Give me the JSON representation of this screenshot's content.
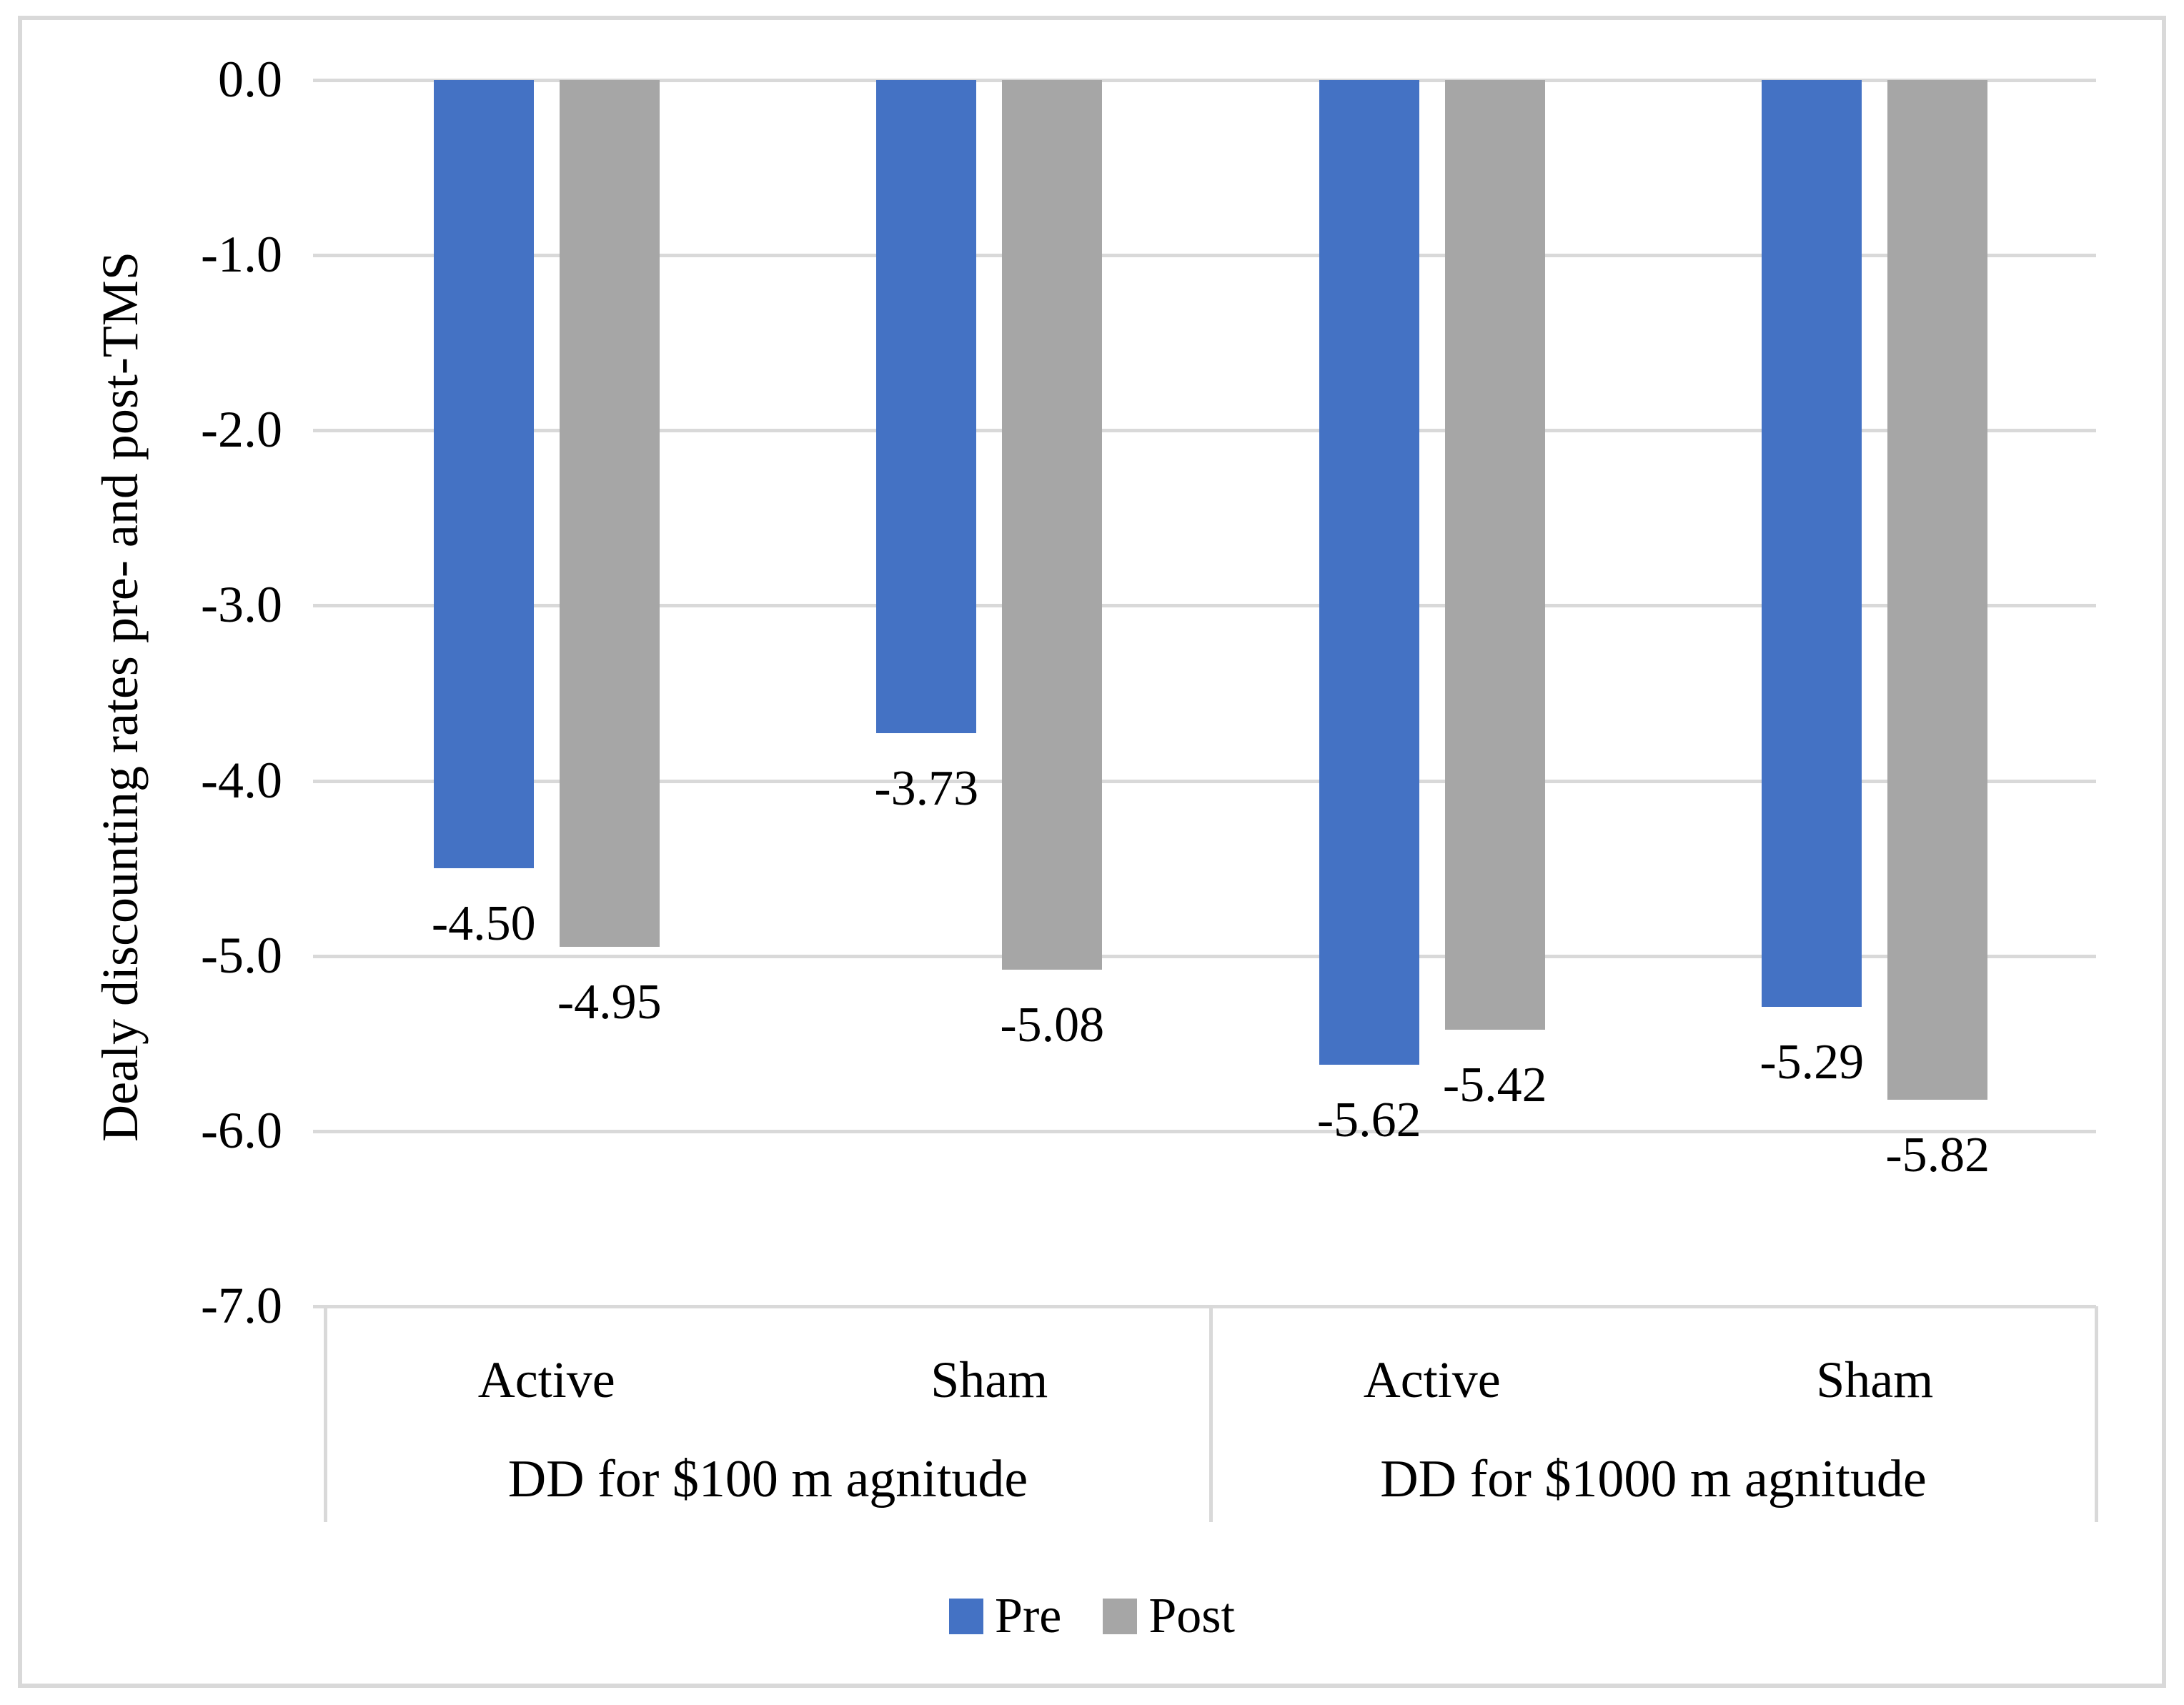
{
  "figure": {
    "background_color": "#ffffff",
    "frame_border_color": "#d9d9d9",
    "gridline_color": "#d9d9d9",
    "axis_line_color": "#d9d9d9",
    "text_color": "#000000"
  },
  "chart_data": {
    "type": "bar",
    "orientation": "vertical",
    "direction": "bars-extend-downward-from-zero",
    "title": "",
    "xlabel": "",
    "ylabel": "Dealy discounting rates pre- and post-TMS",
    "ylim": [
      -7.0,
      0.0
    ],
    "ytick_step": 1.0,
    "ytick_labels": [
      "0.0",
      "-1.0",
      "-2.0",
      "-3.0",
      "-4.0",
      "-5.0",
      "-6.0",
      "-7.0"
    ],
    "grid": true,
    "categories": [
      "Active",
      "Sham",
      "Active",
      "Sham"
    ],
    "groups": [
      {
        "label": "DD for $100 m agnitude",
        "category_span": [
          "Active",
          "Sham"
        ]
      },
      {
        "label": "DD for $1000 m agnitude",
        "category_span": [
          "Active",
          "Sham"
        ]
      }
    ],
    "series": [
      {
        "name": "Pre",
        "color": "#4472c4",
        "values": [
          -4.5,
          -3.73,
          -5.62,
          -5.29
        ],
        "data_labels": [
          "-4.50",
          "-3.73",
          "-5.62",
          "-5.29"
        ]
      },
      {
        "name": "Post",
        "color": "#a6a6a6",
        "values": [
          -4.95,
          -5.08,
          -5.42,
          -5.82
        ],
        "data_labels": [
          "-4.95",
          "-5.08",
          "-5.42",
          "-5.82"
        ]
      }
    ],
    "legend": {
      "position": "bottom-center",
      "entries": [
        {
          "label": "Pre",
          "color": "#4472c4"
        },
        {
          "label": "Post",
          "color": "#a6a6a6"
        }
      ]
    }
  }
}
